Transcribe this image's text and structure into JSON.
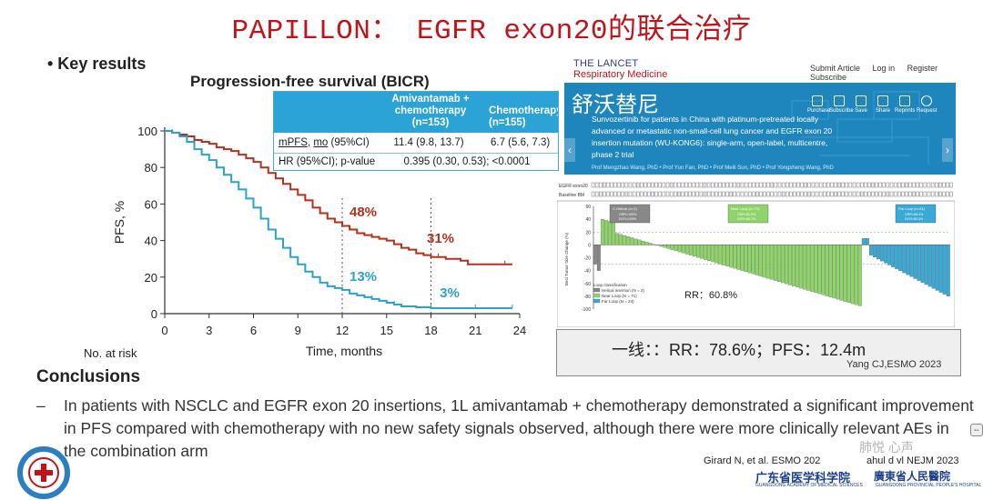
{
  "slide": {
    "title": "PAPILLON：  EGFR exon20的联合治疗",
    "bullet": "• Key results"
  },
  "km": {
    "title": "Progression-free survival (BICR)",
    "table": {
      "col1": "Amivantamab +\nchemotherapy\n(n=153)",
      "col2": "Chemotherapy\n(n=155)",
      "row1_label_a": "mPFS",
      "row1_label_b": "mo",
      "row1_label_c": " (95%CI)",
      "row1_v1": "11.4 (9.8, 13.7)",
      "row1_v2": "6.7 (5.6, 7.3)",
      "row2_label": "HR (95%CI); p-value",
      "row2_v1": "0.395 (0.30, 0.53); <0.0001"
    },
    "no_at_risk": "No. at risk"
  },
  "chart_data": {
    "type": "line",
    "title": "Progression-free survival (BICR)",
    "xlabel": "Time, months",
    "ylabel": "PFS, %",
    "xlim": [
      0,
      24
    ],
    "ylim": [
      0,
      100
    ],
    "xticks": [
      "0",
      "3",
      "6",
      "9",
      "12",
      "15",
      "18",
      "21",
      "24"
    ],
    "yticks": [
      "0",
      "20",
      "40",
      "60",
      "80",
      "100"
    ],
    "reference_lines_x": [
      12,
      18
    ],
    "annotations": [
      {
        "text": "48%",
        "series": 0
      },
      {
        "text": "31%",
        "series": 0
      },
      {
        "text": "13%",
        "series": 1
      },
      {
        "text": "3%",
        "series": 1
      }
    ],
    "series": [
      {
        "color": "#b5301e",
        "points": [
          [
            0,
            100
          ],
          [
            0.5,
            99
          ],
          [
            1,
            98
          ],
          [
            1.5,
            97
          ],
          [
            2,
            95
          ],
          [
            2.5,
            94
          ],
          [
            3,
            93
          ],
          [
            3.5,
            91
          ],
          [
            4,
            90
          ],
          [
            4.5,
            89
          ],
          [
            5,
            87
          ],
          [
            5.5,
            85
          ],
          [
            6,
            83
          ],
          [
            6.5,
            80
          ],
          [
            7,
            77
          ],
          [
            7.5,
            74
          ],
          [
            8,
            71
          ],
          [
            8.5,
            68
          ],
          [
            9,
            65
          ],
          [
            9.5,
            62
          ],
          [
            10,
            58
          ],
          [
            10.5,
            55
          ],
          [
            11,
            52
          ],
          [
            11.5,
            50
          ],
          [
            12,
            48
          ],
          [
            12.5,
            46
          ],
          [
            13,
            44
          ],
          [
            13.5,
            43
          ],
          [
            14,
            42
          ],
          [
            14.5,
            41
          ],
          [
            15,
            40
          ],
          [
            15.5,
            38
          ],
          [
            16,
            36
          ],
          [
            16.5,
            35
          ],
          [
            17,
            33
          ],
          [
            17.5,
            32
          ],
          [
            18,
            31
          ],
          [
            18.5,
            31
          ],
          [
            19,
            30
          ],
          [
            20,
            29
          ],
          [
            20.5,
            27
          ],
          [
            21,
            27
          ],
          [
            22,
            27
          ],
          [
            23,
            27
          ],
          [
            23.5,
            27
          ]
        ]
      },
      {
        "color": "#2ba3c9",
        "points": [
          [
            0,
            100
          ],
          [
            0.5,
            99
          ],
          [
            1,
            97
          ],
          [
            1.5,
            94
          ],
          [
            2,
            90
          ],
          [
            2.5,
            87
          ],
          [
            3,
            84
          ],
          [
            3.5,
            80
          ],
          [
            4,
            76
          ],
          [
            4.5,
            72
          ],
          [
            5,
            68
          ],
          [
            5.5,
            63
          ],
          [
            6,
            58
          ],
          [
            6.5,
            52
          ],
          [
            7,
            46
          ],
          [
            7.5,
            41
          ],
          [
            8,
            36
          ],
          [
            8.5,
            31
          ],
          [
            9,
            27
          ],
          [
            9.5,
            23
          ],
          [
            10,
            20
          ],
          [
            10.5,
            17
          ],
          [
            11,
            15
          ],
          [
            11.5,
            14
          ],
          [
            12,
            13
          ],
          [
            12.5,
            11
          ],
          [
            13,
            10
          ],
          [
            13.5,
            9
          ],
          [
            14,
            8
          ],
          [
            14.5,
            7
          ],
          [
            15,
            6
          ],
          [
            15.5,
            5
          ],
          [
            16,
            4
          ],
          [
            17,
            3.5
          ],
          [
            18,
            3
          ],
          [
            19,
            3
          ],
          [
            20,
            3
          ],
          [
            21,
            3
          ],
          [
            22,
            3
          ],
          [
            23,
            3
          ],
          [
            23.5,
            3
          ]
        ]
      }
    ]
  },
  "article": {
    "journal": "THE LANCET",
    "journal_sub": "Respiratory Medicine",
    "nav": [
      "Submit Article",
      "Log in",
      "Register",
      "Subscribe"
    ],
    "drug_cn": "舒沃替尼",
    "headline": "Sunvozertinib for patients in China with platinum-pretreated locally advanced or metastatic non-small-cell lung cancer and EGFR exon 20 insertion mutation (WU-KONG6): single-arm, open-label, multicentre, phase 2 trial",
    "authors": "Prof Mengzhao Wang, PhD  •  Prof Yun Fan, PhD  •  Prof Meili Sun, PhD  •  Prof Yongsheng Wang, PhD",
    "actions": [
      "Purchase",
      "Subscribe",
      "Save",
      "Share",
      "Reprints",
      "Request"
    ],
    "prev": "‹",
    "next": "›"
  },
  "waterfall": {
    "track_labels": [
      "EGFR exon20",
      "Baseline BM"
    ],
    "groups": [
      {
        "label": "C-Helical (n=2)",
        "stats": "ORR=100%\nDCR=100%",
        "color": "#888888"
      },
      {
        "label": "Near Loop (n=71)",
        "stats": "ORR=62.0%\nDCR=88.7%",
        "color": "#8fd46b"
      },
      {
        "label": "Far Loop (n=24)",
        "stats": "ORR=58.3%\nDCR=83.3%",
        "color": "#3aa9d6"
      }
    ],
    "ylabel": "Best Tumor Size Change (%)",
    "yticks": [
      "60",
      "40",
      "20",
      "0",
      "-20",
      "-40",
      "-60",
      "-80",
      "-100"
    ],
    "legend_title": "Loop classification",
    "legend": [
      "Helical insertion (N = 2)",
      "Near Loop (N = 71)",
      "Far Loop (N = 24)"
    ],
    "rr": "RR：60.8%"
  },
  "summary_box": {
    "text": "一线：：RR：78.6%；PFS：12.4m",
    "cite": "Yang CJ,ESMO 2023"
  },
  "conclusions": {
    "heading": "Conclusions",
    "dash": "–",
    "text": "In patients with NSCLC and EGFR exon 20 insertions, 1L amivantamab + chemotherapy demonstrated a significant improvement in PFS compared with chemotherapy with no new safety signals observed, although there were more clinically relevant AEs in the combination arm"
  },
  "footer": {
    "citation_left": "Girard N, et al. ESMO 202",
    "citation_right": "ahul  d  vl  NEJM 2023",
    "logo1": "广东省医学科学院",
    "logo1_sub": "GUANGDONG ACADEMY OF MEDICAL SCIENCES",
    "logo2": "廣東省人民醫院",
    "logo2_sub": "GUANGDONG PROVINCIAL PEOPLE'S HOSPITAL",
    "watermark": "肺悦 心声",
    "scroll_hint": "⇔"
  },
  "colors": {
    "title_red": "#c0141a",
    "table_header": "#2ba3d6",
    "ami_chemo": "#b5301e",
    "chemo": "#2ba3c9",
    "banner": "#1e86bd"
  }
}
